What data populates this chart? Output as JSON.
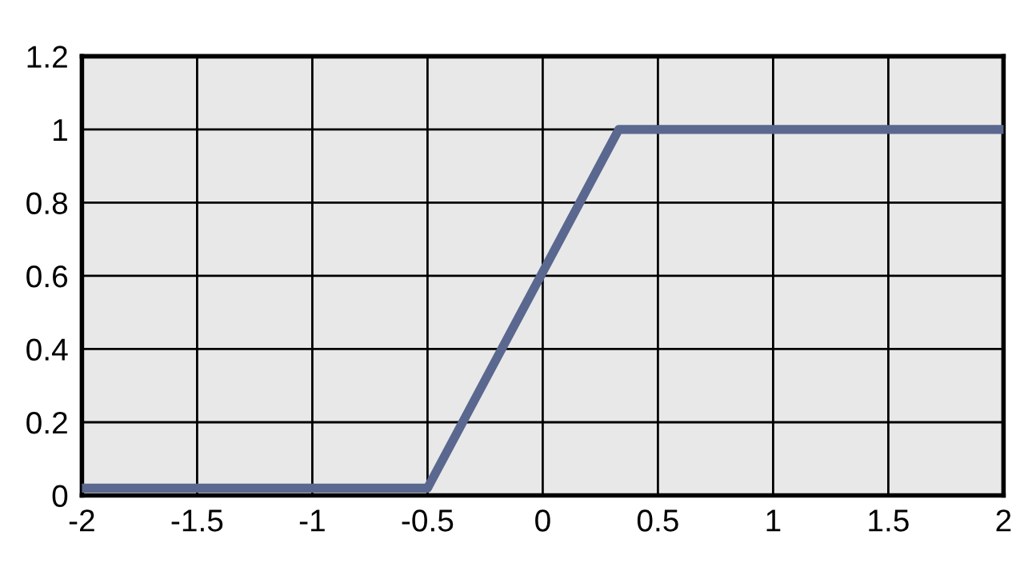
{
  "chart_data": {
    "type": "line",
    "x": [
      -2,
      -0.5,
      0.33,
      2
    ],
    "series": [
      {
        "color": "#5a6890",
        "values": [
          0.02,
          0.02,
          1,
          1
        ]
      }
    ],
    "xlim": [
      -2,
      2
    ],
    "xticks": [
      -2,
      -1.5,
      -1,
      -0.5,
      0,
      0.5,
      1,
      1.5,
      2
    ],
    "ylim": [
      0,
      1.2
    ],
    "yticks": [
      0,
      0.2,
      0.4,
      0.6,
      0.8,
      1,
      1.2
    ],
    "grid": true,
    "marker": "none",
    "line_style": "solid"
  }
}
